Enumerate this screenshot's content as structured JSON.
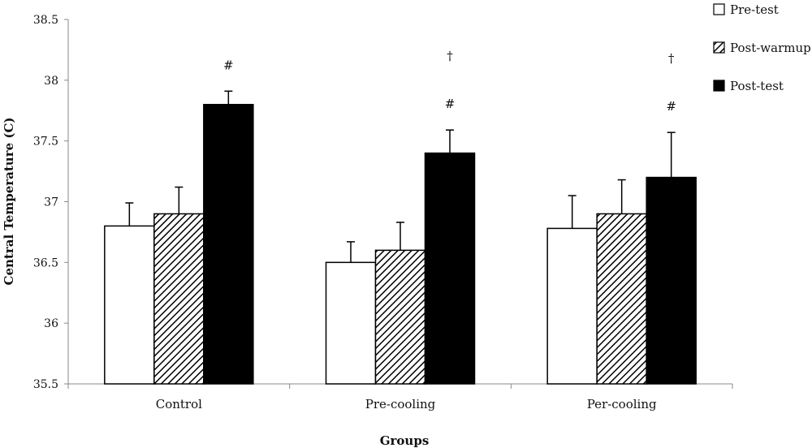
{
  "chart_data": {
    "type": "bar",
    "title": "",
    "xlabel": "Groups",
    "ylabel": "Central Temperature (C)",
    "ylim": [
      35.5,
      38.5
    ],
    "yticks": [
      "35.5",
      "36",
      "36.5",
      "37",
      "37.5",
      "38",
      "38.5"
    ],
    "categories": [
      "Control",
      "Pre-cooling",
      "Per-cooling"
    ],
    "series": [
      {
        "name": "Pre-test",
        "values": [
          36.8,
          36.5,
          36.78
        ],
        "errors": [
          0.19,
          0.17,
          0.27
        ],
        "pattern": "white"
      },
      {
        "name": "Post-warmup",
        "values": [
          36.9,
          36.6,
          36.9
        ],
        "errors": [
          0.22,
          0.23,
          0.28
        ],
        "pattern": "hatch"
      },
      {
        "name": "Post-test",
        "values": [
          37.8,
          37.4,
          37.2
        ],
        "errors": [
          0.11,
          0.19,
          0.37
        ],
        "pattern": "black"
      }
    ],
    "annotations": [
      {
        "category": 0,
        "series": 2,
        "text": "#",
        "tier": 1
      },
      {
        "category": 1,
        "series": 2,
        "text": "#",
        "tier": 1
      },
      {
        "category": 1,
        "series": 2,
        "text": "†",
        "tier": 2
      },
      {
        "category": 2,
        "series": 2,
        "text": "#",
        "tier": 1
      },
      {
        "category": 2,
        "series": 2,
        "text": "†",
        "tier": 2
      }
    ],
    "legend_position": "top-right",
    "grid": false
  },
  "colors": {
    "bar_stroke": "#000000",
    "pre_test_fill": "#ffffff",
    "post_test_fill": "#000000",
    "hatch_line": "#000000"
  }
}
